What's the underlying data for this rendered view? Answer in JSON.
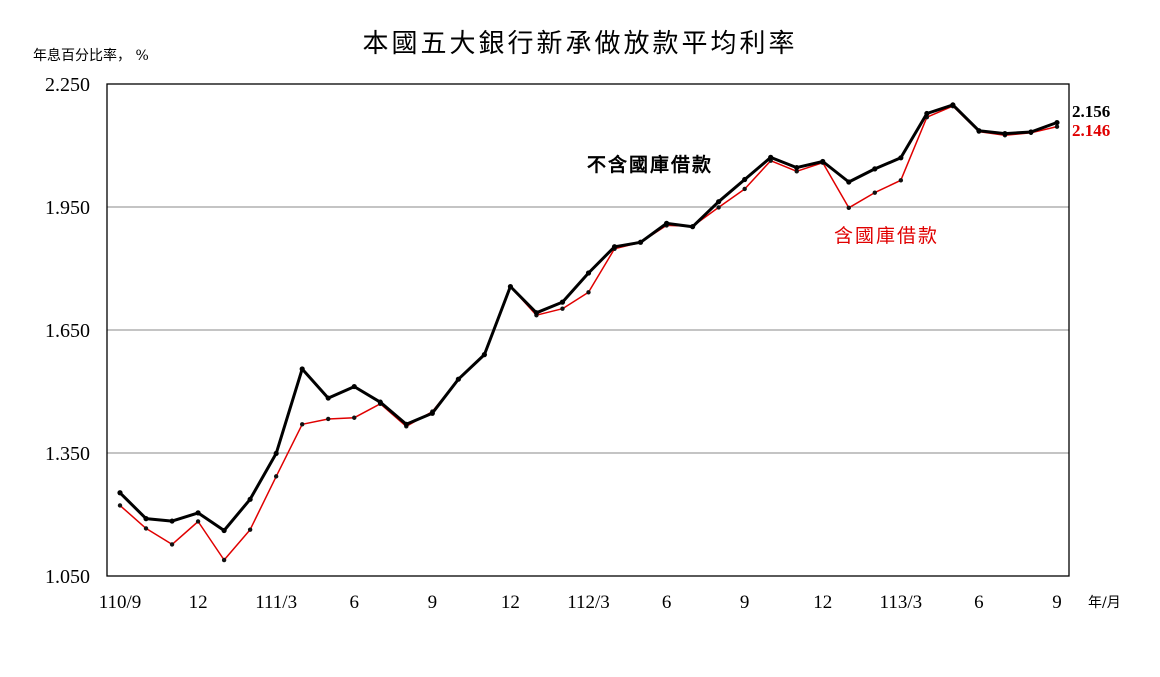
{
  "chart_data": {
    "type": "line",
    "title": "本國五大銀行新承做放款平均利率",
    "ylabel": "年息百分比率， %",
    "xlabel": "年/月",
    "ylim": [
      1.05,
      2.25
    ],
    "y_ticks": [
      "1.050",
      "1.350",
      "1.650",
      "1.950",
      "2.250"
    ],
    "y_tick_values": [
      1.05,
      1.35,
      1.65,
      1.95,
      2.25
    ],
    "grid": true,
    "x_tick_labels": [
      {
        "index": 0,
        "label": "110/9"
      },
      {
        "index": 3,
        "label": "12"
      },
      {
        "index": 6,
        "label": "111/3"
      },
      {
        "index": 9,
        "label": "6"
      },
      {
        "index": 12,
        "label": "9"
      },
      {
        "index": 15,
        "label": "12"
      },
      {
        "index": 18,
        "label": "112/3"
      },
      {
        "index": 21,
        "label": "6"
      },
      {
        "index": 24,
        "label": "9"
      },
      {
        "index": 27,
        "label": "12"
      },
      {
        "index": 30,
        "label": "113/3"
      },
      {
        "index": 33,
        "label": "6"
      },
      {
        "index": 36,
        "label": "9"
      }
    ],
    "series": [
      {
        "name": "不含國庫借款",
        "color": "#000000",
        "end_label": "2.156",
        "values": [
          1.253,
          1.19,
          1.184,
          1.204,
          1.161,
          1.237,
          1.349,
          1.555,
          1.484,
          1.512,
          1.474,
          1.42,
          1.447,
          1.53,
          1.59,
          1.756,
          1.692,
          1.718,
          1.789,
          1.853,
          1.864,
          1.91,
          1.902,
          1.963,
          2.017,
          2.071,
          2.046,
          2.061,
          2.011,
          2.043,
          2.07,
          2.178,
          2.199,
          2.136,
          2.129,
          2.133,
          2.156
        ]
      },
      {
        "name": "含國庫借款",
        "color": "#e00000",
        "end_label": "2.146",
        "values": [
          1.222,
          1.166,
          1.127,
          1.183,
          1.089,
          1.163,
          1.293,
          1.42,
          1.433,
          1.436,
          1.47,
          1.415,
          1.451,
          1.53,
          1.59,
          1.756,
          1.686,
          1.702,
          1.742,
          1.848,
          1.864,
          1.905,
          1.903,
          1.949,
          1.994,
          2.063,
          2.037,
          2.058,
          1.948,
          1.985,
          2.015,
          2.169,
          2.196,
          2.134,
          2.125,
          2.131,
          2.146
        ]
      }
    ]
  }
}
